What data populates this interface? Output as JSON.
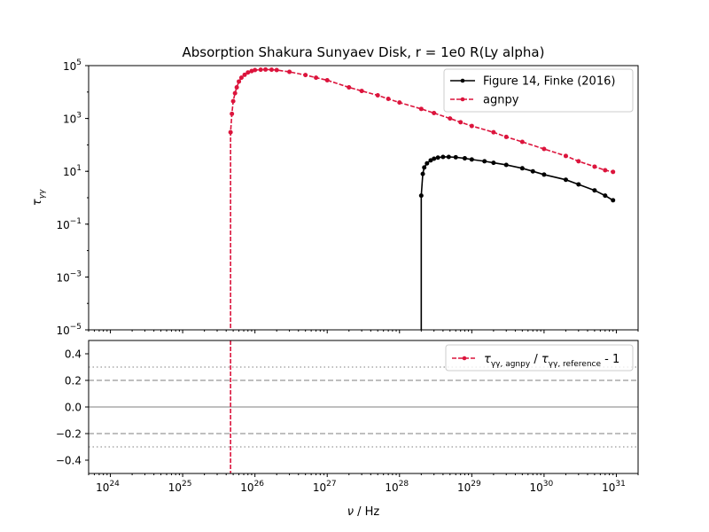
{
  "chart_data": [
    {
      "type": "line",
      "title": "Absorption Shakura Sunyaev Disk, r = 1e0 R(Ly alpha)",
      "ylabel_main": "τ",
      "ylabel_sub": "γγ",
      "x_scale": "log",
      "y_scale": "log",
      "xlim": [
        5e+23,
        2e+31
      ],
      "ylim": [
        1e-05,
        100000.0
      ],
      "y_ticks": [
        {
          "value": 1e-05,
          "base": "10",
          "exp": "−5"
        },
        {
          "value": 0.001,
          "base": "10",
          "exp": "−3"
        },
        {
          "value": 0.1,
          "base": "10",
          "exp": "−1"
        },
        {
          "value": 10.0,
          "base": "10",
          "exp": "1"
        },
        {
          "value": 1000.0,
          "base": "10",
          "exp": "3"
        },
        {
          "value": 100000.0,
          "base": "10",
          "exp": "5"
        }
      ],
      "legend_position": "top-right",
      "series": [
        {
          "name": "Figure 14, Finke (2016)",
          "color": "#000000",
          "style": "solid",
          "marker": "circle",
          "drop_to": 1e-05,
          "x": [
            2e+28,
            2.1e+28,
            2.2e+28,
            2.4e+28,
            2.7e+28,
            3e+28,
            3.4e+28,
            4e+28,
            4.8e+28,
            6e+28,
            8e+28,
            1e+29,
            1.5e+29,
            2e+29,
            3e+29,
            5e+29,
            7e+29,
            1e+30,
            2e+30,
            3e+30,
            5e+30,
            7e+30,
            9e+30
          ],
          "y": [
            1.2,
            8,
            14,
            20,
            26,
            30,
            33,
            35,
            35,
            34,
            31,
            28,
            24,
            21,
            17.5,
            13,
            10,
            7.5,
            4.8,
            3.2,
            1.9,
            1.2,
            0.8
          ]
        },
        {
          "name": "agnpy",
          "color": "#dc143c",
          "style": "dashed",
          "marker": "circle",
          "drop_to": 1e-05,
          "x": [
            4.6e+25,
            4.8e+25,
            5e+25,
            5.3e+25,
            5.6e+25,
            6e+25,
            6.5e+25,
            7.2e+25,
            8e+25,
            9e+25,
            1e+26,
            1.2e+26,
            1.4e+26,
            1.7e+26,
            2e+26,
            3e+26,
            5e+26,
            7e+26,
            1e+27,
            2e+27,
            3e+27,
            5e+27,
            7e+27,
            1e+28,
            2e+28,
            3e+28,
            5e+28,
            7e+28,
            1e+29,
            2e+29,
            3e+29,
            5e+29,
            1e+30,
            2e+30,
            3e+30,
            5e+30,
            7e+30,
            9e+30
          ],
          "y": [
            300,
            1500,
            4500,
            9000,
            15000,
            25000,
            35000,
            45000,
            55000,
            62000,
            68000,
            70000,
            71000,
            70000,
            68000,
            58000,
            44000,
            35000,
            28000,
            15000,
            11000,
            7500,
            5500,
            4000,
            2300,
            1600,
            1000,
            720,
            520,
            300,
            200,
            130,
            70,
            38,
            24,
            15,
            11,
            9.5
          ]
        }
      ]
    },
    {
      "type": "line",
      "x_scale": "log",
      "xlim": [
        5e+23,
        2e+31
      ],
      "ylim": [
        -0.5,
        0.5
      ],
      "y_ticks": [
        "0.4",
        "0.2",
        "0.0",
        "−0.2",
        "−0.4"
      ],
      "x_ticks": [
        {
          "value": 1e+24,
          "base": "10",
          "exp": "24"
        },
        {
          "value": 1e+25,
          "base": "10",
          "exp": "25"
        },
        {
          "value": 1e+26,
          "base": "10",
          "exp": "26"
        },
        {
          "value": 1e+27,
          "base": "10",
          "exp": "27"
        },
        {
          "value": 1e+28,
          "base": "10",
          "exp": "28"
        },
        {
          "value": 1e+29,
          "base": "10",
          "exp": "29"
        },
        {
          "value": 1e+30,
          "base": "10",
          "exp": "30"
        },
        {
          "value": 1e+31,
          "base": "10",
          "exp": "31"
        }
      ],
      "xlabel_nu": "ν",
      "xlabel_unit": " / Hz",
      "reference_lines": [
        {
          "y": 0.3,
          "style": "dotted",
          "color": "#aaaaaa"
        },
        {
          "y": 0.2,
          "style": "dashed",
          "color": "#aaaaaa"
        },
        {
          "y": 0.0,
          "style": "solid",
          "color": "#aaaaaa"
        },
        {
          "y": -0.2,
          "style": "dashed",
          "color": "#aaaaaa"
        },
        {
          "y": -0.3,
          "style": "dotted",
          "color": "#aaaaaa"
        }
      ],
      "legend_position": "top-right",
      "series": [
        {
          "name_tau": "τ",
          "name_sub1": "γγ, agnpy",
          "name_mid": " / ",
          "name_sub2": "γγ, reference",
          "name_suffix": " - 1",
          "color": "#dc143c",
          "style": "dashed",
          "marker": "circle",
          "vertical_x": 4.6e+25
        }
      ]
    }
  ]
}
